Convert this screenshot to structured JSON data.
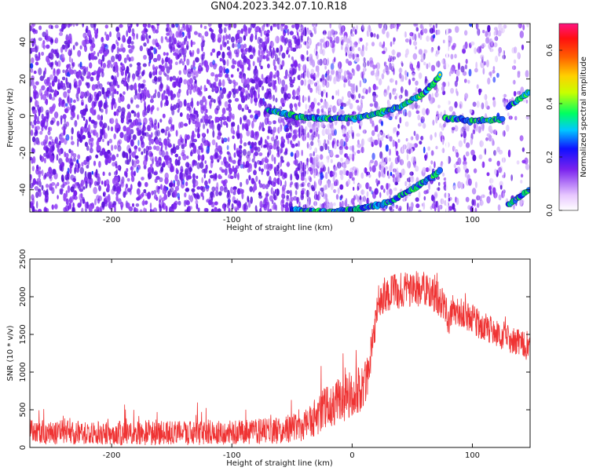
{
  "title": "GN04.2023.342.07.10.R18",
  "colors": {
    "signal": "#ef3333",
    "speckle": "#7a22ee",
    "background": "#ffffff",
    "axis": "#111111"
  },
  "chart_data": [
    {
      "type": "heatmap",
      "xlabel": "Height of straight line (km)",
      "ylabel": "Frequency (Hz)",
      "xlim": [
        -268,
        148
      ],
      "ylim": [
        -52,
        50
      ],
      "xticks": [
        -200,
        -100,
        0,
        100
      ],
      "yticks": [
        -40,
        -20,
        0,
        20,
        40
      ],
      "xtick_labels": [
        "-200",
        "-100",
        "0",
        "100"
      ],
      "ytick_labels": [
        "-40",
        "-20",
        "0",
        "20",
        "40"
      ],
      "colorbar": {
        "label": "Normalized spectral amplitude",
        "range": [
          0.0,
          0.7
        ],
        "ticks": [
          0.0,
          0.2,
          0.4,
          0.6
        ],
        "tick_labels": [
          "0.0",
          "0.2",
          "0.4",
          "0.6"
        ],
        "colormap": [
          "#ffffff",
          "#7a22ee",
          "#1010ff",
          "#00e0ff",
          "#00ff40",
          "#ffff00",
          "#ff8000",
          "#ff2020",
          "#ff1480"
        ]
      },
      "ridges": [
        {
          "name": "",
          "x": [
            -70,
            -40,
            -10,
            0,
            20,
            40,
            60,
            73
          ],
          "y": [
            3,
            -1,
            -1.5,
            -1.5,
            1,
            5,
            12,
            22
          ]
        },
        {
          "name": "",
          "x": [
            77,
            90,
            100,
            110,
            125
          ],
          "y": [
            -1.5,
            -1.5,
            -3,
            -2.5,
            -2
          ]
        },
        {
          "name": "",
          "x": [
            130,
            148
          ],
          "y": [
            5,
            13
          ]
        },
        {
          "name": "",
          "x": [
            -50,
            -20,
            10,
            30,
            50,
            73
          ],
          "y": [
            -51,
            -52,
            -50,
            -47,
            -40,
            -30
          ]
        },
        {
          "name": "",
          "x": [
            130,
            148
          ],
          "y": [
            -48,
            -40
          ]
        }
      ]
    },
    {
      "type": "line",
      "xlabel": "Height of straight line (km)",
      "ylabel": "SNR (10 * v/v)",
      "xlim": [
        -268,
        148
      ],
      "ylim": [
        0,
        2500
      ],
      "xticks": [
        -200,
        -100,
        0,
        100
      ],
      "yticks": [
        0,
        500,
        1000,
        1500,
        2000,
        2500
      ],
      "xtick_labels": [
        "-200",
        "-100",
        "0",
        "100"
      ],
      "ytick_labels": [
        "0",
        "500",
        "1000",
        "1500",
        "2000",
        "2500"
      ],
      "series": [
        {
          "name": "",
          "x": [
            -268,
            -240,
            -200,
            -160,
            -120,
            -100,
            -80,
            -60,
            -40,
            -30,
            -20,
            -10,
            0,
            10,
            15,
            20,
            25,
            30,
            40,
            50,
            60,
            70,
            75,
            78,
            80,
            83,
            90,
            100,
            110,
            120,
            130,
            140,
            148
          ],
          "y": [
            200,
            200,
            190,
            190,
            190,
            200,
            210,
            230,
            300,
            400,
            550,
            650,
            700,
            800,
            1100,
            1800,
            2000,
            2050,
            2080,
            2100,
            2100,
            2000,
            1900,
            1850,
            1650,
            1850,
            1800,
            1700,
            1600,
            1500,
            1450,
            1380,
            1300
          ],
          "noise": [
            160,
            160,
            160,
            160,
            160,
            160,
            170,
            180,
            220,
            260,
            300,
            320,
            320,
            300,
            300,
            260,
            240,
            240,
            240,
            240,
            240,
            220,
            220,
            200,
            200,
            200,
            200,
            200,
            200,
            190,
            180,
            180,
            180
          ]
        }
      ]
    }
  ]
}
